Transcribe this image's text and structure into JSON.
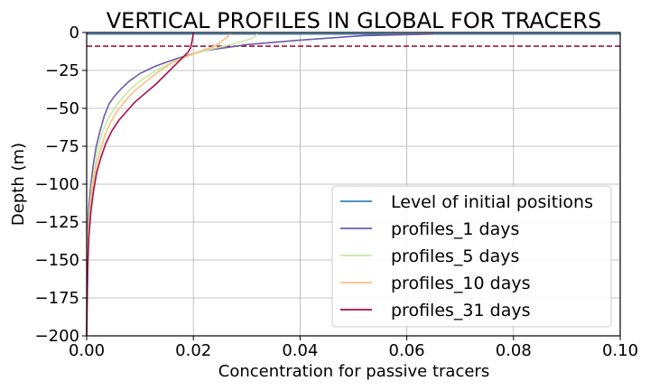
{
  "chart_data": {
    "type": "line",
    "title": "VERTICAL PROFILES IN GLOBAL FOR TRACERS",
    "xlabel": "Concentration for passive tracers",
    "ylabel": "Depth (m)",
    "xlim": [
      0,
      0.1
    ],
    "ylim": [
      -200,
      0
    ],
    "xticks": [
      "0.00",
      "0.02",
      "0.04",
      "0.06",
      "0.08",
      "0.10"
    ],
    "xtick_values": [
      0,
      0.02,
      0.04,
      0.06,
      0.08,
      0.1
    ],
    "yticks": [
      "0",
      "−25",
      "−50",
      "−75",
      "−100",
      "−125",
      "−150",
      "−175",
      "−200"
    ],
    "ytick_values": [
      0,
      -25,
      -50,
      -75,
      -100,
      -125,
      -150,
      -175,
      -200
    ],
    "grid": true,
    "legend_position": "lower-right",
    "reference_lines": [
      {
        "name": "Level of initial positions",
        "y": -1,
        "color": "#3b7fb8",
        "style": "solid"
      },
      {
        "name": "",
        "y": -9,
        "color": "#a50026",
        "style": "dashed"
      }
    ],
    "series": [
      {
        "name": "profiles_1 days",
        "color": "#6a5ca8",
        "x": [
          0.065,
          0.052,
          0.04,
          0.03,
          0.022,
          0.017,
          0.013,
          0.01,
          0.008,
          0.0065,
          0.0052,
          0.0042,
          0.0033,
          0.0025,
          0.0018,
          0.0012,
          0.0008,
          0.0004,
          0.0002,
          0.0001,
          0.0
        ],
        "y": [
          -1,
          -2,
          -5,
          -8,
          -12,
          -17,
          -22,
          -27,
          -32,
          -37,
          -42,
          -47,
          -55,
          -65,
          -75,
          -88,
          -100,
          -115,
          -130,
          -150,
          -200
        ]
      },
      {
        "name": "profiles_5 days",
        "color": "#c7e9a9",
        "x": [
          0.032,
          0.031,
          0.027,
          0.022,
          0.017,
          0.013,
          0.01,
          0.008,
          0.0065,
          0.0052,
          0.004,
          0.003,
          0.0022,
          0.0016,
          0.001,
          0.0006,
          0.0003,
          0.0001,
          0.0
        ],
        "y": [
          -1,
          -4,
          -8,
          -12,
          -18,
          -25,
          -32,
          -38,
          -44,
          -50,
          -57,
          -65,
          -75,
          -87,
          -100,
          -115,
          -130,
          -150,
          -200
        ]
      },
      {
        "name": "profiles_10 days",
        "color": "#fdbe7e",
        "x": [
          0.027,
          0.026,
          0.024,
          0.02,
          0.016,
          0.013,
          0.0105,
          0.0085,
          0.007,
          0.0057,
          0.0045,
          0.0035,
          0.0026,
          0.0018,
          0.0012,
          0.0007,
          0.0004,
          0.0001,
          0.0
        ],
        "y": [
          -1,
          -4,
          -9,
          -14,
          -20,
          -27,
          -34,
          -40,
          -46,
          -52,
          -59,
          -67,
          -77,
          -88,
          -100,
          -115,
          -130,
          -150,
          -200
        ]
      },
      {
        "name": "profiles_31 days",
        "color": "#a50f4a",
        "x": [
          0.02,
          0.0198,
          0.0195,
          0.019,
          0.017,
          0.015,
          0.013,
          0.011,
          0.009,
          0.0075,
          0.006,
          0.0047,
          0.0036,
          0.0027,
          0.0019,
          0.0013,
          0.0008,
          0.0004,
          0.0002,
          0.0
        ],
        "y": [
          0,
          -5,
          -10,
          -13,
          -20,
          -27,
          -34,
          -40,
          -46,
          -52,
          -58,
          -65,
          -73,
          -82,
          -92,
          -104,
          -118,
          -135,
          -155,
          -200
        ]
      }
    ]
  }
}
